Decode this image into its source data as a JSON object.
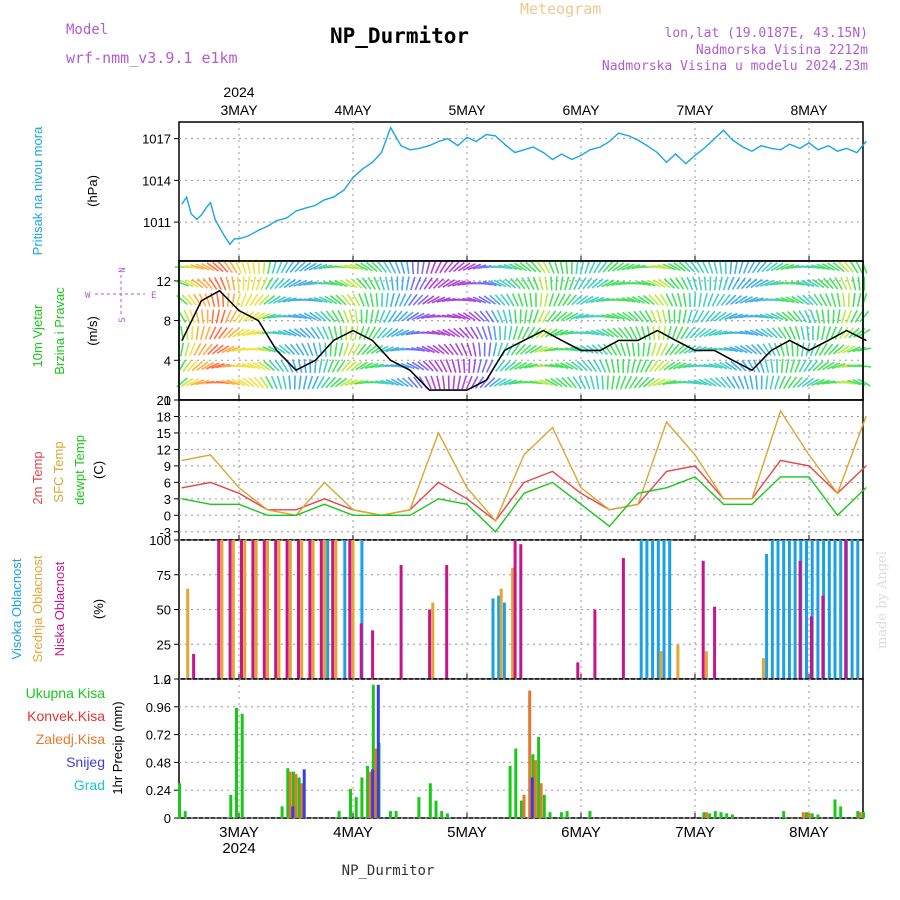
{
  "header": {
    "model_label": "Model",
    "model_name": "wrf-nmm_v3.9.1 e1km",
    "meteogram_label": "Meteogram",
    "title": "NP_Durmitor",
    "coords": "lon,lat (19.0187E, 43.15N)",
    "elevation": "Nadmorska Visina 2212m",
    "model_elevation": "Nadmorska Visina u modelu 2024.23m"
  },
  "time_axis": {
    "year": "2024",
    "days": [
      "3MAY",
      "4MAY",
      "5MAY",
      "6MAY",
      "7MAY",
      "8MAY"
    ],
    "footer_label": "NP_Durmitor"
  },
  "watermark": "made by Angel",
  "colors": {
    "pressure": "#19a6e6",
    "temp_2m": "#e64646",
    "sfc_temp": "#dca532",
    "dewpoint": "#19c819",
    "visoka": "#19a0e6",
    "srednja": "#e6a532",
    "niska": "#c8148c",
    "ukupna": "#19c819",
    "konvek": "#e63232",
    "zaledj": "#e6782d",
    "snijeg": "#3c3ce6",
    "grad": "#19c8c8"
  },
  "panels": {
    "pressure": {
      "title": "Pritisak na nivou mora",
      "unit": "(hPa)"
    },
    "wind": {
      "title_1": "10m Vjetar",
      "title_2": "Brzina i Pravac",
      "unit": "(m/s)",
      "compass": {
        "n": "N",
        "s": "S",
        "w": "W",
        "e": "E"
      }
    },
    "temperature": {
      "title_1": "2m Temp",
      "title_2": "SFC Temp",
      "title_3": "dewpt Temp",
      "unit": "(C)"
    },
    "cloud": {
      "title_1": "Visoka Oblacnost",
      "title_2": "Srednja Oblacnost",
      "title_3": "Niska Oblacnost",
      "unit": "(%)"
    },
    "precip": {
      "ylabel": "1hr Precip (mm)",
      "legend": [
        "Ukupna Kisa",
        "Konvek.Kisa",
        "Zaledj.Kisa",
        "Snijeg",
        "Grad"
      ]
    }
  },
  "chart_data": [
    {
      "type": "line",
      "title": "Pritisak na nivou mora",
      "ylabel": "(hPa)",
      "ylim": [
        1008.2,
        1018.2
      ],
      "yticks": [
        1011,
        1014,
        1017
      ],
      "x_unit": "days from 2 MAY 12 UTC",
      "series": [
        {
          "name": "Pritisak na nivou mora",
          "color": "#19a6e6",
          "x": [
            0,
            0.04,
            0.08,
            0.13,
            0.17,
            0.21,
            0.25,
            0.29,
            0.33,
            0.38,
            0.42,
            0.46,
            0.5,
            0.58,
            0.67,
            0.75,
            0.83,
            0.92,
            1.0,
            1.08,
            1.17,
            1.25,
            1.33,
            1.42,
            1.5,
            1.58,
            1.67,
            1.75,
            1.83,
            1.92,
            2.0,
            2.08,
            2.17,
            2.25,
            2.33,
            2.42,
            2.5,
            2.58,
            2.67,
            2.75,
            2.83,
            2.92,
            3.0,
            3.08,
            3.17,
            3.25,
            3.33,
            3.42,
            3.5,
            3.58,
            3.67,
            3.75,
            3.83,
            3.92,
            4.0,
            4.08,
            4.17,
            4.25,
            4.33,
            4.42,
            4.5,
            4.58,
            4.67,
            4.75,
            4.83,
            4.92,
            5.0,
            5.08,
            5.17,
            5.25,
            5.33,
            5.42,
            5.5,
            5.58,
            5.67,
            5.75,
            5.83,
            5.92,
            6.0
          ],
          "values": [
            1012.3,
            1012.8,
            1011.6,
            1011.2,
            1011.5,
            1012.0,
            1012.4,
            1011.2,
            1010.6,
            1009.9,
            1009.4,
            1009.8,
            1009.8,
            1010.0,
            1010.4,
            1010.7,
            1011.1,
            1011.3,
            1011.8,
            1012.0,
            1012.2,
            1012.6,
            1012.8,
            1013.3,
            1014.2,
            1014.8,
            1015.3,
            1016.0,
            1017.8,
            1016.5,
            1016.2,
            1016.3,
            1016.5,
            1016.8,
            1017.0,
            1016.5,
            1017.1,
            1016.8,
            1017.3,
            1017.2,
            1016.6,
            1016.0,
            1016.2,
            1016.4,
            1016.0,
            1015.5,
            1015.9,
            1015.5,
            1015.8,
            1016.2,
            1016.4,
            1016.8,
            1017.4,
            1017.2,
            1016.9,
            1016.5,
            1016.0,
            1015.3,
            1015.9,
            1015.2,
            1015.8,
            1016.3,
            1017.0,
            1017.6,
            1016.9,
            1016.4,
            1016.1,
            1016.5,
            1016.3,
            1016.2,
            1016.6,
            1016.3,
            1016.7,
            1016.2,
            1016.5,
            1016.1,
            1016.3,
            1016.0,
            1016.8
          ]
        }
      ]
    },
    {
      "type": "line",
      "title": "10m Vjetar Brzina i Pravac",
      "ylabel": "(m/s)",
      "ylim": [
        0,
        14
      ],
      "yticks": [
        0,
        4,
        8,
        12
      ],
      "x_unit": "days from 2 MAY 12 UTC",
      "series": [
        {
          "name": "10m Vjetar",
          "color": "#000000",
          "x": [
            0,
            0.17,
            0.33,
            0.5,
            0.67,
            0.83,
            1.0,
            1.17,
            1.33,
            1.5,
            1.67,
            1.83,
            2.0,
            2.17,
            2.33,
            2.5,
            2.67,
            2.83,
            3.0,
            3.17,
            3.33,
            3.5,
            3.67,
            3.83,
            4.0,
            4.17,
            4.33,
            4.5,
            4.67,
            4.83,
            5.0,
            5.17,
            5.33,
            5.5,
            5.67,
            5.83,
            6.0
          ],
          "values": [
            6,
            10,
            11,
            9,
            8,
            5,
            3,
            4,
            6,
            7,
            6,
            4,
            3,
            1,
            1,
            1,
            2,
            5,
            6,
            7,
            6,
            5,
            5,
            6,
            6,
            7,
            6,
            5,
            5,
            4,
            3,
            5,
            6,
            5,
            6,
            7,
            6
          ]
        }
      ]
    },
    {
      "type": "line",
      "title": "2m Temp / SFC Temp / dewpt Temp",
      "ylabel": "(C)",
      "ylim": [
        -4.5,
        21
      ],
      "yticks": [
        -3,
        0,
        3,
        6,
        9,
        12,
        15,
        18,
        21
      ],
      "x_unit": "days from 2 MAY 12 UTC",
      "series": [
        {
          "name": "2m Temp",
          "color": "#e64646",
          "x": [
            0,
            0.25,
            0.5,
            0.75,
            1.0,
            1.25,
            1.5,
            1.75,
            2.0,
            2.25,
            2.5,
            2.75,
            3.0,
            3.25,
            3.5,
            3.75,
            4.0,
            4.25,
            4.5,
            4.75,
            5.0,
            5.25,
            5.5,
            5.75,
            6.0
          ],
          "values": [
            5,
            6,
            4,
            1,
            1,
            3,
            1,
            0,
            1,
            6,
            3,
            -1,
            6,
            8,
            4,
            1,
            2,
            8,
            9,
            3,
            3,
            10,
            9,
            4,
            9
          ]
        },
        {
          "name": "SFC Temp",
          "color": "#dca532",
          "x": [
            0,
            0.25,
            0.5,
            0.75,
            1.0,
            1.25,
            1.5,
            1.75,
            2.0,
            2.25,
            2.5,
            2.75,
            3.0,
            3.25,
            3.5,
            3.75,
            4.0,
            4.25,
            4.5,
            4.75,
            5.0,
            5.25,
            5.5,
            5.75,
            6.0
          ],
          "values": [
            10,
            11,
            5,
            1,
            0,
            6,
            1,
            0,
            1,
            15,
            5,
            -1,
            11,
            16,
            5,
            1,
            2,
            17,
            11,
            3,
            3,
            19,
            11,
            4,
            18
          ]
        },
        {
          "name": "dewpt Temp",
          "color": "#19c819",
          "x": [
            0,
            0.25,
            0.5,
            0.75,
            1.0,
            1.25,
            1.5,
            1.75,
            2.0,
            2.25,
            2.5,
            2.75,
            3.0,
            3.25,
            3.5,
            3.75,
            4.0,
            4.25,
            4.5,
            4.75,
            5.0,
            5.25,
            5.5,
            5.75,
            6.0
          ],
          "values": [
            3,
            2,
            2,
            0,
            0,
            2,
            0,
            0,
            0,
            3,
            2,
            -3,
            4,
            6,
            2,
            -2,
            4,
            5,
            7,
            2,
            2,
            7,
            7,
            0,
            5
          ]
        }
      ]
    },
    {
      "type": "bar",
      "title": "Visoka / Srednja / Niska Oblacnost",
      "ylabel": "(%)",
      "ylim": [
        0,
        100
      ],
      "yticks": [
        0,
        25,
        50,
        75,
        100
      ],
      "x_unit": "days from 2 MAY 12 UTC",
      "series": [
        {
          "name": "Visoka Oblacnost",
          "color": "#19a0e6",
          "x": [
            1.3,
            1.45,
            1.6,
            2.75,
            2.8,
            2.85,
            4.05,
            4.1,
            4.15,
            4.2,
            4.25,
            4.3,
            5.15,
            5.2,
            5.25,
            5.3,
            5.35,
            5.4,
            5.45,
            5.5,
            5.55,
            5.6,
            5.65,
            5.7,
            5.75,
            5.8,
            5.85,
            5.9,
            5.95
          ],
          "values": [
            100,
            100,
            100,
            58,
            60,
            55,
            100,
            100,
            100,
            100,
            100,
            100,
            90,
            100,
            100,
            100,
            100,
            100,
            100,
            100,
            100,
            100,
            100,
            100,
            100,
            100,
            100,
            100,
            100
          ]
        },
        {
          "name": "Srednja Oblacnost",
          "color": "#e6a532",
          "x": [
            0.05,
            0.35,
            0.45,
            0.55,
            0.65,
            0.75,
            0.85,
            0.95,
            1.05,
            1.15,
            1.25,
            1.35,
            1.5,
            2.2,
            2.8,
            2.9,
            4.2,
            4.35,
            4.6,
            5.1
          ],
          "values": [
            65,
            100,
            100,
            100,
            100,
            100,
            100,
            100,
            100,
            100,
            100,
            100,
            100,
            55,
            65,
            80,
            20,
            25,
            20,
            15
          ]
        },
        {
          "name": "Niska Oblacnost",
          "color": "#c8148c",
          "x": [
            0.08,
            0.3,
            0.4,
            0.5,
            0.6,
            0.7,
            0.8,
            0.9,
            1.0,
            1.1,
            1.2,
            1.3,
            1.45,
            1.55,
            1.65,
            1.9,
            2.15,
            2.3,
            2.9,
            2.95,
            3.45,
            3.6,
            3.85,
            4.55,
            4.65,
            5.4,
            5.5,
            5.6,
            5.8
          ],
          "values": [
            18,
            100,
            100,
            100,
            100,
            100,
            100,
            100,
            100,
            100,
            100,
            100,
            100,
            40,
            35,
            82,
            50,
            82,
            100,
            97,
            12,
            50,
            87,
            85,
            52,
            85,
            45,
            60,
            100
          ]
        }
      ]
    },
    {
      "type": "bar",
      "title": "1hr Precip",
      "ylabel": "1hr Precip (mm)",
      "ylim": [
        0,
        1.2
      ],
      "yticks": [
        0,
        0.24,
        0.48,
        0.72,
        0.96,
        1.2
      ],
      "x_unit": "days from 2 MAY 12 UTC",
      "series": [
        {
          "name": "Ukupna Kisa",
          "color": "#19c819",
          "x": [
            0.0,
            0.05,
            0.45,
            0.5,
            0.55,
            0.9,
            0.95,
            1.0,
            1.05,
            1.4,
            1.5,
            1.55,
            1.6,
            1.65,
            1.7,
            1.75,
            1.85,
            1.9,
            2.1,
            2.2,
            2.25,
            2.3,
            2.35,
            2.9,
            2.95,
            3.0,
            3.1,
            3.15,
            3.2,
            3.25,
            3.35,
            3.4,
            3.6,
            4.6,
            4.65,
            4.7,
            4.75,
            4.8,
            4.85,
            5.3,
            5.5,
            5.55,
            5.6,
            5.75,
            5.8,
            5.95,
            6.0
          ],
          "values": [
            0.3,
            0.06,
            0.2,
            0.95,
            0.9,
            0.1,
            0.43,
            0.4,
            0.35,
            0.06,
            0.25,
            0.18,
            0.35,
            0.45,
            1.15,
            0.65,
            0.06,
            0.06,
            0.18,
            0.3,
            0.15,
            0.06,
            0.04,
            0.45,
            0.6,
            0.15,
            0.55,
            0.7,
            0.2,
            0.05,
            0.05,
            0.06,
            0.06,
            0.05,
            0.04,
            0.06,
            0.05,
            0.04,
            0.03,
            0.06,
            0.05,
            0.04,
            0.03,
            0.16,
            0.1,
            0.06,
            0.05
          ]
        },
        {
          "name": "Zaledj.Kisa",
          "color": "#e6782d",
          "x": [
            0.95,
            1.0,
            1.05,
            1.65,
            1.7,
            3.0,
            3.05,
            3.1,
            3.15,
            4.6,
            5.45,
            5.5,
            5.95
          ],
          "values": [
            0.4,
            0.38,
            0.3,
            0.4,
            0.6,
            0.2,
            1.1,
            0.5,
            0.3,
            0.05,
            0.05,
            0.04,
            0.05
          ]
        },
        {
          "name": "Snijeg",
          "color": "#3c3ce6",
          "x": [
            0.95,
            1.05,
            1.65,
            1.7,
            3.05
          ],
          "values": [
            0.1,
            0.42,
            0.42,
            1.15,
            0.35
          ]
        }
      ]
    }
  ]
}
